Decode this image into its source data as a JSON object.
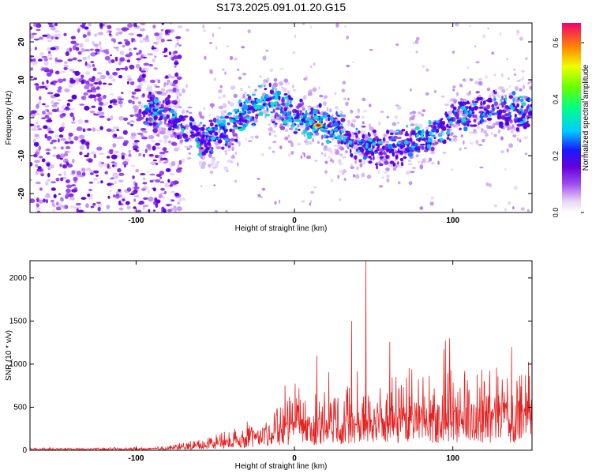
{
  "title": "S173.2025.091.01.20.G15",
  "chart_data": [
    {
      "type": "heatmap",
      "xlabel": "Height of straight line (km)",
      "ylabel": "Frequency (Hz)",
      "xlim": [
        -167,
        150
      ],
      "ylim": [
        -25,
        25
      ],
      "xticks": [
        -100,
        0,
        100
      ],
      "yticks": [
        -20,
        -10,
        0,
        10,
        20
      ],
      "colorbar": {
        "label": "Normalized spectral amplitude",
        "range": [
          0,
          0.67
        ],
        "ticks": [
          0.0,
          0.2,
          0.4,
          0.6
        ],
        "tick_labels": [
          "0.0",
          "0.2",
          "0.4",
          "0.6"
        ]
      },
      "ridge": {
        "x": [
          -100,
          -80,
          -60,
          -40,
          -20,
          0,
          20,
          40,
          60,
          80,
          100,
          120,
          150
        ],
        "y": [
          3,
          1,
          -6,
          -3,
          5,
          1,
          -2,
          -7,
          -8,
          -6,
          0,
          2,
          1
        ]
      },
      "peak": {
        "x": 15,
        "y": -2,
        "value": 0.67
      },
      "noise_region_upper_x": -80
    },
    {
      "type": "line",
      "xlabel": "Height of straight line (km)",
      "ylabel": "SNR (10 * v/v)",
      "xlim": [
        -167,
        150
      ],
      "ylim": [
        0,
        2200
      ],
      "xticks": [
        -100,
        0,
        100
      ],
      "yticks": [
        0,
        500,
        1000,
        1500,
        2000
      ],
      "color": "#e52222",
      "envelope": {
        "x": [
          -167,
          -100,
          -80,
          -60,
          -40,
          -20,
          0,
          20,
          40,
          60,
          80,
          100,
          120,
          150
        ],
        "y": [
          25,
          30,
          50,
          120,
          220,
          420,
          550,
          650,
          700,
          800,
          800,
          850,
          850,
          900
        ]
      },
      "peaks": [
        {
          "x": 45,
          "y": 2200
        },
        {
          "x": 36,
          "y": 1500
        },
        {
          "x": 14,
          "y": 1100
        },
        {
          "x": 98,
          "y": 1300
        },
        {
          "x": 137,
          "y": 1200
        }
      ]
    }
  ]
}
